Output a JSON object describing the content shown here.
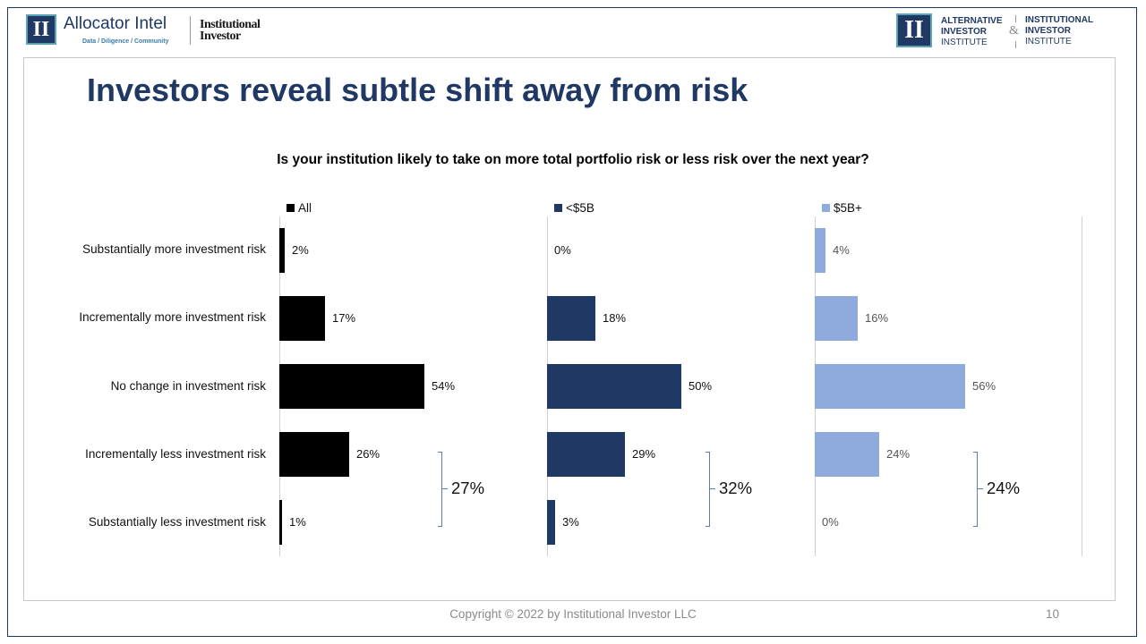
{
  "header": {
    "left_logo_mark": "II",
    "left_logo_name": "Allocator Intel",
    "left_logo_tagline": "Data / Diligence / Community",
    "partner_logo_line1": "Institutional",
    "partner_logo_line2": "Investor",
    "right_logo_mark": "II",
    "right_logo_a": [
      "ALTERNATIVE",
      "INVESTOR",
      "INSTITUTE"
    ],
    "right_logo_amp": "&",
    "right_logo_b": [
      "INSTITUTIONAL",
      "INVESTOR",
      "INSTITUTE"
    ]
  },
  "slide": {
    "title": "Investors reveal subtle shift away from risk",
    "question": "Is your institution likely to take on more total portfolio risk or less risk over the next year?",
    "copyright": "Copyright © 2022 by Institutional Investor LLC",
    "page_number": "10"
  },
  "chart_data": {
    "type": "bar",
    "orientation": "horizontal",
    "categories": [
      "Substantially more investment risk",
      "Incrementally more investment risk",
      "No change in investment risk",
      "Incrementally less investment risk",
      "Substantially less investment risk"
    ],
    "series": [
      {
        "name": "All",
        "color": "#000000",
        "values": [
          2,
          17,
          54,
          26,
          1
        ],
        "labels": [
          "2%",
          "17%",
          "54%",
          "26%",
          "1%"
        ],
        "less_risk_total": "27%"
      },
      {
        "name": "<$5B",
        "color": "#1f3864",
        "values": [
          0,
          18,
          50,
          29,
          3
        ],
        "labels": [
          "0%",
          "18%",
          "50%",
          "29%",
          "3%"
        ],
        "less_risk_total": "32%"
      },
      {
        "name": "$5B+",
        "color": "#8faadc",
        "values": [
          4,
          16,
          56,
          24,
          0
        ],
        "labels": [
          "4%",
          "16%",
          "56%",
          "24%",
          "0%"
        ],
        "less_risk_total": "24%"
      }
    ],
    "value_format": "percent",
    "legend_position": "top of each panel",
    "grid": false
  }
}
